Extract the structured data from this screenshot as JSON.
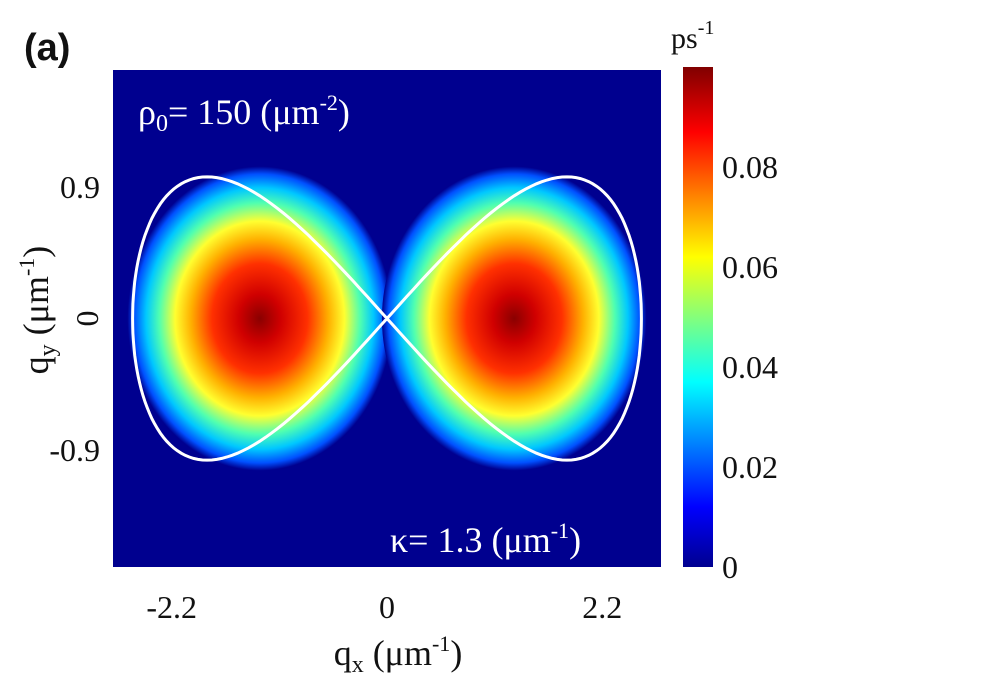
{
  "chart_data": {
    "type": "heatmap",
    "panel_label": "(a)",
    "x_axis": {
      "label_main": "q",
      "label_sub": "x",
      "label_unit": " (μm",
      "label_sup": "-1",
      "label_close": ")",
      "range": [
        -2.8,
        2.8
      ],
      "ticks": [
        -2.2,
        0,
        2.2
      ],
      "tick_labels": [
        "-2.2",
        "0",
        "2.2"
      ]
    },
    "y_axis": {
      "label_main": "q",
      "label_sub": "y",
      "label_unit": " (μm",
      "label_sup": "-1",
      "label_close": ")",
      "range": [
        -1.7,
        1.7
      ],
      "ticks": [
        0.9,
        0,
        -0.9
      ],
      "tick_labels": [
        "0.9",
        "0",
        "-0.9"
      ]
    },
    "colorbar": {
      "unit_main": "ps",
      "unit_sup": "-1",
      "range": [
        0,
        0.1
      ],
      "ticks": [
        0.08,
        0.06,
        0.04,
        0.02,
        0
      ],
      "tick_labels": [
        "0.08",
        "0.06",
        "0.04",
        "0.02",
        "0"
      ],
      "colormap": "jet"
    },
    "annotations": {
      "rho": {
        "symbol": "ρ",
        "sub": "0",
        "text": "= 150 (μm",
        "sup": "-2",
        "close": ")"
      },
      "kappa": {
        "symbol": "κ",
        "text": "= 1.3 (μm",
        "sup": "-1",
        "close": ")"
      }
    },
    "lobes": [
      {
        "center_qx": -1.3,
        "center_qy": 0.0,
        "peak": 0.1
      },
      {
        "center_qx": 1.3,
        "center_qy": 0.0,
        "peak": 0.1
      }
    ],
    "contour": {
      "shape": "figure-eight",
      "color": "#ffffff",
      "half_width_qx": 2.6,
      "half_height_qy": 1.02
    },
    "background_color": "#00008f"
  }
}
